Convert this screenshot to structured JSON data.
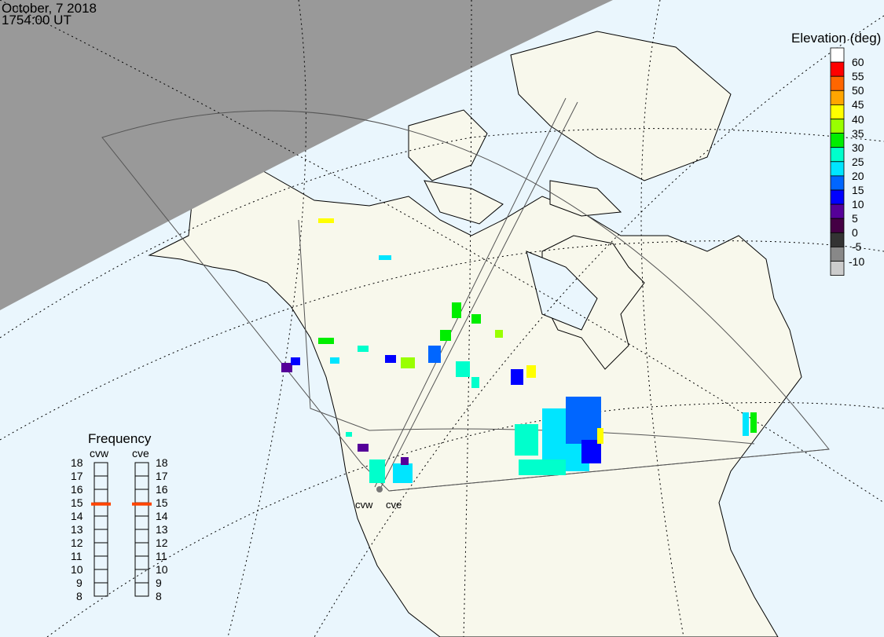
{
  "header": {
    "date": "October, 7 2018",
    "time": "1754:00 UT"
  },
  "colors": {
    "ocean": "#eaf6fd",
    "land": "#f8f8ec",
    "night": "#999999",
    "frequency_marker": "#ff4400"
  },
  "elevation_legend": {
    "title": "Elevation (deg)",
    "labels": [
      "60",
      "55",
      "50",
      "45",
      "40",
      "35",
      "30",
      "25",
      "20",
      "15",
      "10",
      "5",
      "0",
      "-5",
      "-10"
    ],
    "colors": [
      "#ffffff",
      "#ff0000",
      "#ff6600",
      "#ffa500",
      "#ffff00",
      "#99ff00",
      "#00ee00",
      "#00ffcc",
      "#00e5ff",
      "#0066ff",
      "#0000ff",
      "#550099",
      "#440044",
      "#333333",
      "#888888",
      "#cccccc"
    ]
  },
  "frequency_panel": {
    "title": "Frequency",
    "radars": [
      {
        "name": "cvw",
        "frequency_mhz": 14.9
      },
      {
        "name": "cve",
        "frequency_mhz": 14.9
      }
    ],
    "ticks": [
      "18",
      "17",
      "16",
      "15",
      "14",
      "13",
      "12",
      "11",
      "10",
      "9",
      "8"
    ]
  },
  "radar_labels": [
    "cvw",
    "cve"
  ]
}
